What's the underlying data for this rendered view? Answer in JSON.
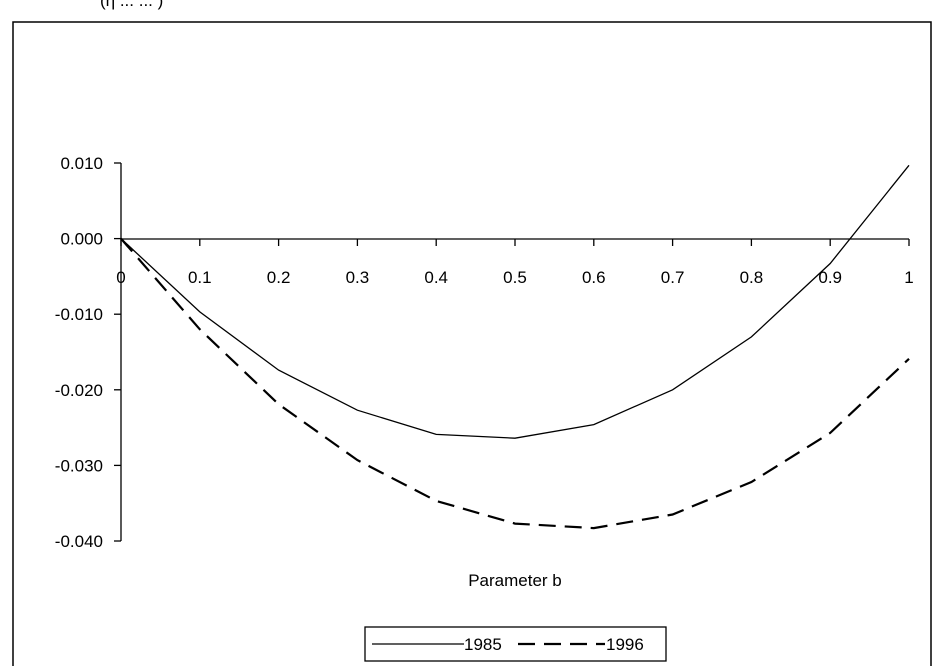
{
  "chart_data": {
    "type": "line",
    "title": "",
    "header_fragment": "(η   ...   ...    )",
    "xlabel": "Parameter b",
    "ylabel": "",
    "x": [
      0,
      0.1,
      0.2,
      0.3,
      0.4,
      0.5,
      0.6,
      0.7,
      0.8,
      0.9,
      1
    ],
    "x_tick_labels": [
      "0",
      "0.1",
      "0.2",
      "0.3",
      "0.4",
      "0.5",
      "0.6",
      "0.7",
      "0.8",
      "0.9",
      "1"
    ],
    "y_tick_labels": [
      "0.010",
      "0.000",
      "-0.010",
      "-0.020",
      "-0.030",
      "-0.040"
    ],
    "y_ticks": [
      0.01,
      0.0,
      -0.01,
      -0.02,
      -0.03,
      -0.04
    ],
    "ylim": [
      -0.04,
      0.01
    ],
    "xlim": [
      0,
      1
    ],
    "grid": false,
    "legend_position": "bottom-center",
    "series": [
      {
        "name": "1985",
        "style": "solid",
        "color": "#000000",
        "values": [
          0.0,
          -0.0097,
          -0.0174,
          -0.0227,
          -0.0259,
          -0.0264,
          -0.0246,
          -0.02,
          -0.013,
          -0.0033,
          0.0097
        ]
      },
      {
        "name": "1996",
        "style": "dashed",
        "color": "#000000",
        "values": [
          0.0,
          -0.012,
          -0.0219,
          -0.0293,
          -0.0347,
          -0.0377,
          -0.0383,
          -0.0365,
          -0.0322,
          -0.0257,
          -0.0159
        ]
      }
    ]
  }
}
